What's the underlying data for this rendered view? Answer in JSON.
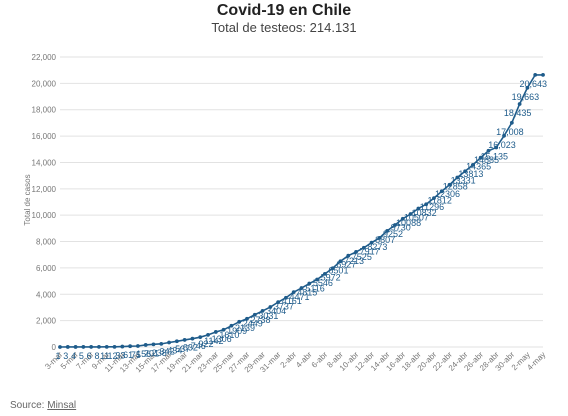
{
  "header": {
    "title": "Covid-19 en Chile",
    "subtitle": "Total de testeos: 214.131"
  },
  "footer": {
    "source_label": "Source:",
    "source_link": "Minsal"
  },
  "colors": {
    "line": "#1f5c8b",
    "point": "#1f5c8b",
    "label": "#1f5c8b",
    "grid": "#e2e2e2",
    "axis_text": "#777777"
  },
  "chart_data": {
    "type": "line",
    "title": "Covid-19 en Chile",
    "subtitle": "Total de testeos: 214.131",
    "ylabel": "Total de casos",
    "xlabel": "",
    "ylim": [
      0,
      22000
    ],
    "yticks": [
      0,
      2000,
      4000,
      6000,
      8000,
      10000,
      12000,
      14000,
      16000,
      18000,
      20000,
      22000
    ],
    "ytick_labels": [
      "0",
      "2,000",
      "4,000",
      "6,000",
      "8,000",
      "10,000",
      "12,000",
      "14,000",
      "16,000",
      "18,000",
      "20,000",
      "22,000"
    ],
    "x": [
      "3-mar",
      "4-mar",
      "5-mar",
      "6-mar",
      "7-mar",
      "8-mar",
      "9-mar",
      "10-mar",
      "11-mar",
      "12-mar",
      "13-mar",
      "14-mar",
      "15-mar",
      "16-mar",
      "17-mar",
      "18-mar",
      "19-mar",
      "20-mar",
      "21-mar",
      "22-mar",
      "23-mar",
      "24-mar",
      "25-mar",
      "26-mar",
      "27-mar",
      "28-mar",
      "29-mar",
      "30-mar",
      "31-mar",
      "1-abr",
      "2-abr",
      "3-abr",
      "4-abr",
      "5-abr",
      "6-abr",
      "7-abr",
      "8-abr",
      "9-abr",
      "10-abr",
      "11-abr",
      "12-abr",
      "13-abr",
      "14-abr",
      "15-abr",
      "16-abr",
      "17-abr",
      "18-abr",
      "19-abr",
      "20-abr",
      "21-abr",
      "22-abr",
      "23-abr",
      "24-abr",
      "25-abr",
      "26-abr",
      "27-abr",
      "28-abr",
      "29-abr",
      "30-abr",
      "1-may",
      "2-may",
      "3-may",
      "4-may"
    ],
    "xtick_labels": [
      "3-mar",
      "5-mar",
      "7-mar",
      "9-mar",
      "11-mar",
      "13-mar",
      "15-mar",
      "17-mar",
      "19-mar",
      "21-mar",
      "23-mar",
      "25-mar",
      "27-mar",
      "29-mar",
      "31-mar",
      "2-abr",
      "4-abr",
      "6-abr",
      "8-abr",
      "10-abr",
      "12-abr",
      "14-abr",
      "16-abr",
      "18-abr",
      "20-abr",
      "22-abr",
      "24-abr",
      "26-abr",
      "28-abr",
      "30-abr",
      "2-may",
      "4-may"
    ],
    "series": [
      {
        "values": [
          1,
          3,
          4,
          5,
          6,
          8,
          11,
          12,
          33,
          61,
          75,
          156,
          201,
          238,
          342,
          434,
          537,
          632,
          746,
          922,
          1142,
          1306,
          1610,
          1909,
          2139,
          2449,
          2738,
          3031,
          3404,
          3737,
          4161,
          4471,
          4815,
          5116,
          5546,
          5972,
          6501,
          6927,
          7213,
          7525,
          7917,
          8273,
          8807,
          9252,
          9730,
          10088,
          10507,
          10832,
          11296,
          11812,
          12306,
          12858,
          13331,
          13813,
          14365,
          14885,
          15135,
          16023,
          17008,
          18435,
          19663,
          20643,
          20643
        ],
        "labels": [
          "1",
          "3",
          "4",
          "5",
          "6",
          "8",
          "11",
          "12",
          "33",
          "61",
          "75",
          "156",
          "201",
          "238",
          "342",
          "434",
          "537",
          "632",
          "746",
          "922",
          "1142",
          "1306",
          "1610",
          "1909",
          "2139",
          "2449",
          "2738",
          "3031",
          "3404",
          "3737",
          "4161",
          "4471",
          "4815",
          "5116",
          "5546",
          "5972",
          "6501",
          "6927",
          "7213",
          "7525",
          "7917",
          "8273",
          "8807",
          "9252",
          "9730",
          "10088",
          "10507",
          "10832",
          "11296",
          "11812",
          "12306",
          "12858",
          "13331",
          "13813",
          "14365",
          "14885",
          "15,135",
          "16,023",
          "17,008",
          "18,435",
          "19,663",
          "20,643",
          ""
        ]
      }
    ],
    "grid": true,
    "legend": "none"
  }
}
